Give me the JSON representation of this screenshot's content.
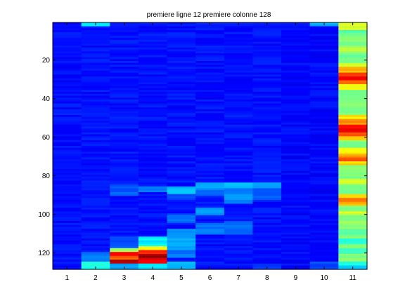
{
  "chart_data": {
    "type": "heatmap",
    "title": "premiere ligne 12 premiere colonne 128",
    "xlabel": "",
    "ylabel": "",
    "colormap": "jet",
    "x_ticks": [
      "1",
      "2",
      "3",
      "4",
      "5",
      "6",
      "7",
      "8",
      "9",
      "10",
      "11"
    ],
    "y_ticks": [
      "20",
      "40",
      "60",
      "80",
      "100",
      "120"
    ],
    "y_tick_values": [
      20,
      40,
      60,
      80,
      100,
      120
    ],
    "xlim": [
      0.5,
      11.5
    ],
    "ylim": [
      0.5,
      128.5
    ],
    "value_range": [
      0,
      1
    ],
    "n_rows": 128,
    "columns": [
      {
        "x": 1,
        "base": 0.14,
        "bands": []
      },
      {
        "x": 2,
        "base": 0.14,
        "bands": [
          [
            1,
            2,
            0.34
          ],
          [
            120,
            124,
            0.24
          ],
          [
            125,
            128,
            0.4
          ]
        ]
      },
      {
        "x": 3,
        "base": 0.14,
        "bands": [
          [
            85,
            90,
            0.22
          ],
          [
            112,
            117,
            0.2
          ],
          [
            118,
            119,
            0.55
          ],
          [
            120,
            121,
            0.88
          ],
          [
            122,
            123,
            0.78
          ],
          [
            124,
            125,
            0.95
          ],
          [
            126,
            128,
            0.3
          ]
        ]
      },
      {
        "x": 4,
        "base": 0.14,
        "bands": [
          [
            86,
            88,
            0.26
          ],
          [
            112,
            116,
            0.36
          ],
          [
            117,
            118,
            0.62
          ],
          [
            119,
            120,
            0.85
          ],
          [
            121,
            122,
            0.97
          ],
          [
            123,
            125,
            0.9
          ],
          [
            126,
            128,
            0.36
          ]
        ]
      },
      {
        "x": 5,
        "base": 0.14,
        "bands": [
          [
            86,
            89,
            0.3
          ],
          [
            90,
            92,
            0.2
          ],
          [
            100,
            104,
            0.22
          ],
          [
            108,
            112,
            0.26
          ],
          [
            113,
            118,
            0.3
          ],
          [
            119,
            122,
            0.24
          ],
          [
            125,
            128,
            0.3
          ]
        ]
      },
      {
        "x": 6,
        "base": 0.14,
        "bands": [
          [
            84,
            86,
            0.3
          ],
          [
            87,
            90,
            0.24
          ],
          [
            97,
            100,
            0.26
          ],
          [
            105,
            110,
            0.24
          ]
        ]
      },
      {
        "x": 7,
        "base": 0.14,
        "bands": [
          [
            84,
            86,
            0.32
          ],
          [
            87,
            94,
            0.26
          ],
          [
            104,
            110,
            0.22
          ]
        ]
      },
      {
        "x": 8,
        "base": 0.14,
        "bands": [
          [
            84,
            86,
            0.28
          ],
          [
            87,
            92,
            0.22
          ],
          [
            126,
            128,
            0.18
          ]
        ]
      },
      {
        "x": 9,
        "base": 0.13,
        "bands": []
      },
      {
        "x": 10,
        "base": 0.13,
        "bands": [
          [
            1,
            2,
            0.3
          ],
          [
            125,
            128,
            0.2
          ]
        ]
      },
      {
        "x": 11,
        "base": 0.5,
        "bands": [
          [
            1,
            4,
            0.58
          ],
          [
            5,
            6,
            0.45
          ],
          [
            9,
            10,
            0.5
          ],
          [
            13,
            15,
            0.55
          ],
          [
            18,
            20,
            0.48
          ],
          [
            22,
            23,
            0.6
          ],
          [
            24,
            26,
            0.7
          ],
          [
            27,
            28,
            0.8
          ],
          [
            29,
            30,
            0.9
          ],
          [
            31,
            32,
            0.75
          ],
          [
            33,
            35,
            0.62
          ],
          [
            41,
            44,
            0.52
          ],
          [
            49,
            50,
            0.65
          ],
          [
            51,
            53,
            0.74
          ],
          [
            54,
            55,
            0.84
          ],
          [
            56,
            57,
            0.9
          ],
          [
            58,
            59,
            0.78
          ],
          [
            60,
            61,
            0.66
          ],
          [
            66,
            68,
            0.62
          ],
          [
            69,
            70,
            0.72
          ],
          [
            71,
            72,
            0.78
          ],
          [
            73,
            74,
            0.66
          ],
          [
            82,
            84,
            0.58
          ],
          [
            90,
            91,
            0.65
          ],
          [
            92,
            93,
            0.78
          ],
          [
            94,
            95,
            0.7
          ],
          [
            99,
            100,
            0.58
          ],
          [
            104,
            106,
            0.52
          ],
          [
            108,
            110,
            0.46
          ],
          [
            113,
            115,
            0.42
          ],
          [
            118,
            120,
            0.44
          ],
          [
            125,
            126,
            0.4
          ],
          [
            127,
            128,
            0.34
          ]
        ]
      }
    ]
  }
}
